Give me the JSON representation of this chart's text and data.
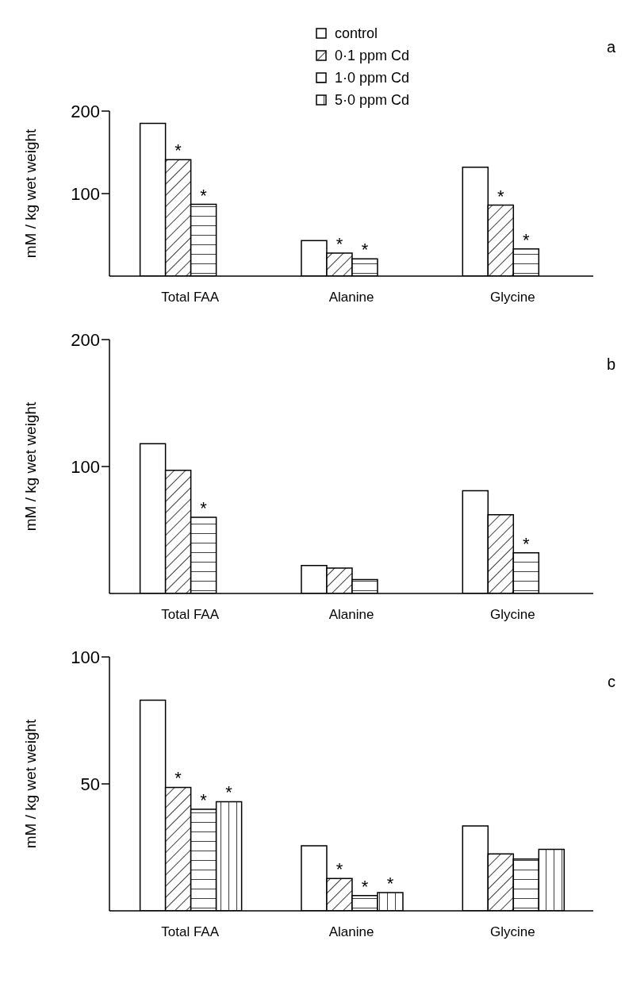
{
  "chart_data": [
    {
      "type": "bar",
      "categories": [
        "Total FAA",
        "Alanine",
        "Glycine"
      ],
      "ylabel": "mM / kg wet weight",
      "ylim": [
        0,
        200
      ],
      "yticks": [
        100,
        200
      ],
      "legend": "top",
      "annotations": [
        "a",
        {
          "text": "*",
          "x": "Total FAA",
          "y": 141
        },
        {
          "text": "*",
          "x": "Total FAA",
          "y": 87
        },
        {
          "text": "*",
          "x": "Alanine",
          "y": 28
        },
        {
          "text": "*",
          "x": "Alanine",
          "y": 21
        },
        {
          "text": "*",
          "x": "Glycine",
          "y": 86
        },
        {
          "text": "*",
          "x": "Glycine",
          "y": 33
        }
      ],
      "series": [
        {
          "name": "control",
          "color": "#000000",
          "values": [
            185,
            43,
            132
          ]
        },
        {
          "name": "0·1 ppm Cd",
          "color": "#000000",
          "values": [
            141,
            28,
            86
          ]
        },
        {
          "name": "1·0 ppm Cd",
          "color": "#000000",
          "values": [
            87,
            21,
            33
          ]
        },
        {
          "name": "5·0 ppm Cd",
          "color": "#000000",
          "values": [
            null,
            null,
            null
          ]
        }
      ]
    },
    {
      "type": "bar",
      "categories": [
        "Total FAA",
        "Alanine",
        "Glycine"
      ],
      "ylabel": "mM / kg wet weight",
      "ylim": [
        0,
        200
      ],
      "yticks": [
        100,
        200
      ],
      "annotations": [
        "b",
        {
          "text": "*",
          "x": "Total FAA",
          "y": 60
        },
        {
          "text": "*",
          "x": "Glycine",
          "y": 32
        }
      ],
      "series": [
        {
          "color": "#000000",
          "values": [
            118,
            22,
            81
          ]
        },
        {
          "color": "#000000",
          "values": [
            97,
            20,
            62
          ]
        },
        {
          "color": "#000000",
          "values": [
            60,
            11,
            32
          ]
        },
        {
          "color": "#000000",
          "values": [
            null,
            null,
            null
          ]
        }
      ]
    },
    {
      "type": "bar",
      "categories": [
        "Total FAA",
        "Alanine",
        "Glycine"
      ],
      "ylabel": "mM / kg wet weight",
      "ylim": [
        0,
        100
      ],
      "yticks": [
        50,
        100
      ],
      "annotations": [
        "c",
        {
          "text": "*",
          "x": "Total FAA",
          "y": 48.6
        },
        {
          "text": "*",
          "x": "Total FAA",
          "y": 40
        },
        {
          "text": "*",
          "x": "Total FAA",
          "y": 43
        },
        {
          "text": "*",
          "x": "Alanine",
          "y": 12.7
        },
        {
          "text": "*",
          "x": "Alanine",
          "y": 6
        },
        {
          "text": "*",
          "x": "Alanine",
          "y": 7.2
        }
      ],
      "series": [
        {
          "color": "#000000",
          "values": [
            83,
            25.6,
            33.4
          ]
        },
        {
          "color": "#000000",
          "values": [
            48.6,
            12.7,
            22.4
          ]
        },
        {
          "color": "#000000",
          "values": [
            40,
            6,
            20.4
          ]
        },
        {
          "color": "#000000",
          "values": [
            43,
            7.2,
            24.2
          ]
        }
      ]
    }
  ]
}
